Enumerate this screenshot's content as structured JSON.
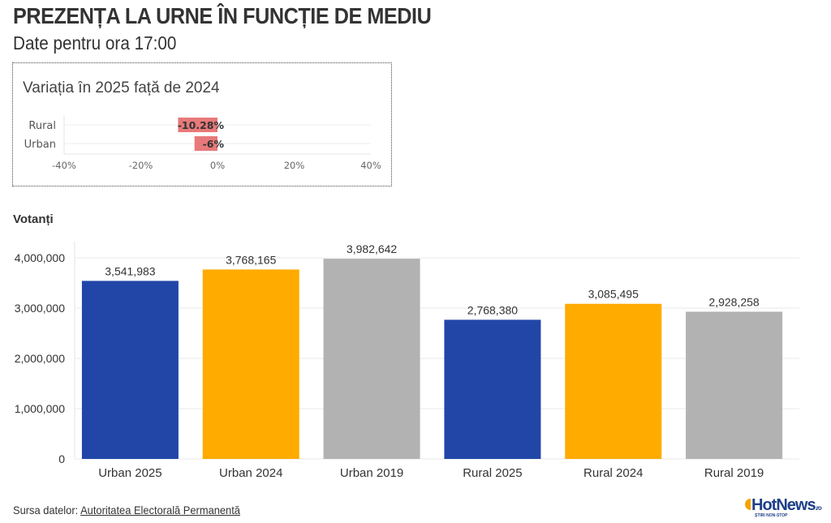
{
  "title": "PREZENȚA LA URNE ÎN FUNCȚIE DE MEDIU",
  "subtitle": "Date pentru ora 17:00",
  "source": {
    "label": "Sursa datelor:",
    "link": "Autoritatea Electorală Permanentă"
  },
  "logo": {
    "name": "HotNews",
    "suffix": ".ro",
    "tagline": "ȘTIRI NON-STOP"
  },
  "chart_data": [
    {
      "type": "bar",
      "orientation": "horizontal",
      "title": "Variația în 2025 față de 2024",
      "categories": [
        "Rural",
        "Urban"
      ],
      "values": [
        -10.28,
        -6
      ],
      "labels": [
        "-10.28%",
        "-6%"
      ],
      "xlim": [
        -40,
        40
      ],
      "xticks": [
        "-40%",
        "-20%",
        "0%",
        "20%",
        "40%"
      ],
      "color": "#e8797a",
      "grid": true
    },
    {
      "type": "bar",
      "ylabel": "Votanți",
      "categories": [
        "Urban 2025",
        "Urban 2024",
        "Urban 2019",
        "Rural 2025",
        "Rural 2024",
        "Rural 2019"
      ],
      "values": [
        3541983,
        3768165,
        3982642,
        2768380,
        3085495,
        2928258
      ],
      "labels": [
        "3,541,983",
        "3,768,165",
        "3,982,642",
        "2,768,380",
        "3,085,495",
        "2,928,258"
      ],
      "colors": [
        "#2146a8",
        "#ffab00",
        "#b2b2b2",
        "#2146a8",
        "#ffab00",
        "#b2b2b2"
      ],
      "ylim": [
        0,
        4000000
      ],
      "yticks": [
        "0",
        "1,000,000",
        "2,000,000",
        "3,000,000",
        "4,000,000"
      ],
      "grid": true
    }
  ]
}
